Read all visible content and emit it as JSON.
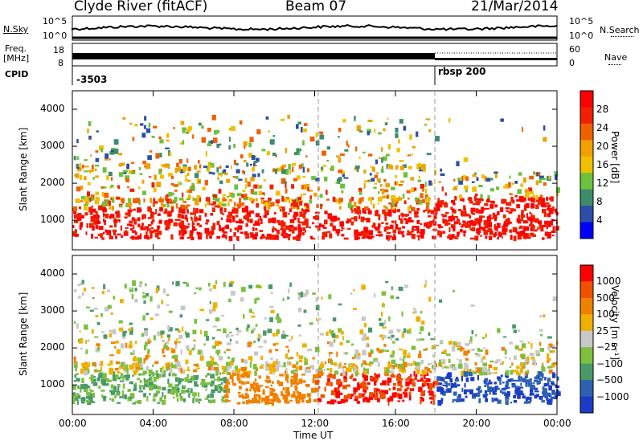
{
  "header": {
    "station": "Clyde River (fitACF)",
    "beam": "Beam 07",
    "date": "21/Mar/2014"
  },
  "top_panels": {
    "nsky_label": "N.Sky",
    "nsky_ticks": [
      "10^5",
      "10^0"
    ],
    "nsky_right_ticks": [
      "10^5",
      "10^0"
    ],
    "nsearch_label": "N.Search",
    "freq_label_1": "Freq.",
    "freq_label_2": "[MHz]",
    "freq_ticks": [
      "18",
      "8"
    ],
    "nave_ticks": [
      "60",
      "0"
    ],
    "nave_label": "Nave",
    "cpid_label": "CPID",
    "cpid_values": [
      "-3503",
      "rbsp 200"
    ]
  },
  "colors": {
    "power_scale": [
      "#0000ff",
      "#2c4ea8",
      "#3c8c6c",
      "#6cc23c",
      "#f0c000",
      "#f0a000",
      "#f06000",
      "#f02000",
      "#ff0000"
    ],
    "velocity_scale": [
      "#1c3cc8",
      "#2e62b0",
      "#4a9a68",
      "#7cc040",
      "#c8c8c8",
      "#f0b000",
      "#f08000",
      "#f05000",
      "#ff0000"
    ]
  },
  "chart_data": [
    {
      "type": "heatmap",
      "title": "Power",
      "xlabel": "Time UT",
      "ylabel": "Slant Range [km]",
      "x_ticks": [
        "00:00",
        "04:00",
        "08:00",
        "12:00",
        "16:00",
        "20:00",
        "00:00"
      ],
      "y_ticks": [
        1000,
        2000,
        3000,
        4000
      ],
      "ylim": [
        200,
        4500
      ],
      "colorbar_label": "Power [dB]",
      "colorbar_ticks": [
        4,
        8,
        12,
        16,
        20,
        24,
        28
      ],
      "colorbar_range": [
        0,
        32
      ]
    },
    {
      "type": "heatmap",
      "title": "Velocity",
      "xlabel": "Time UT",
      "ylabel": "Slant Range [km]",
      "x_ticks": [
        "00:00",
        "04:00",
        "08:00",
        "12:00",
        "16:00",
        "20:00",
        "00:00"
      ],
      "y_ticks": [
        1000,
        2000,
        3000,
        4000
      ],
      "ylim": [
        200,
        4500
      ],
      "colorbar_label": "Velocity [m s⁻¹]",
      "colorbar_ticks": [
        "1000",
        "500",
        "100",
        "25",
        "-25",
        "-100",
        "-500",
        "-1000"
      ]
    }
  ],
  "axis": {
    "time_label": "Time UT",
    "x_ticks": [
      "00:00",
      "04:00",
      "08:00",
      "12:00",
      "16:00",
      "20:00",
      "00:00"
    ],
    "slant_label": "Slant Range [km]",
    "y_ticks": [
      "1000",
      "2000",
      "3000",
      "4000"
    ],
    "power_colorbar_label": "Power [dB]",
    "power_ticks": [
      "28",
      "24",
      "20",
      "16",
      "12",
      "8",
      "4"
    ],
    "velocity_colorbar_label": "Velocity [m s⁻¹]",
    "velocity_ticks": [
      "1000",
      "500",
      "100",
      "25",
      "−25",
      "−100",
      "−500",
      "−1000"
    ]
  }
}
